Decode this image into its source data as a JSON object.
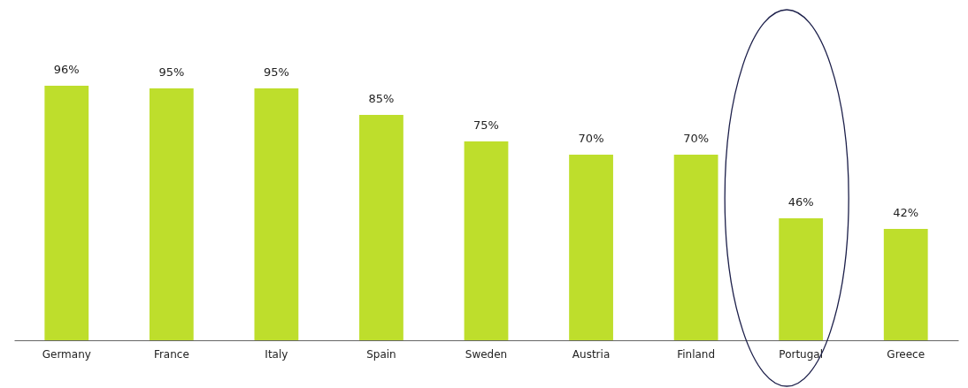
{
  "chart_data": {
    "type": "bar",
    "categories": [
      "Germany",
      "France",
      "Italy",
      "Spain",
      "Sweden",
      "Austria",
      "Finland",
      "Portugal",
      "Greece"
    ],
    "values": [
      96,
      95,
      95,
      85,
      75,
      70,
      70,
      46,
      42
    ],
    "value_labels": [
      "96%",
      "95%",
      "95%",
      "85%",
      "75%",
      "70%",
      "70%",
      "46%",
      "42%"
    ],
    "color": "#bede2c",
    "tick_labels": "x"
  }
}
